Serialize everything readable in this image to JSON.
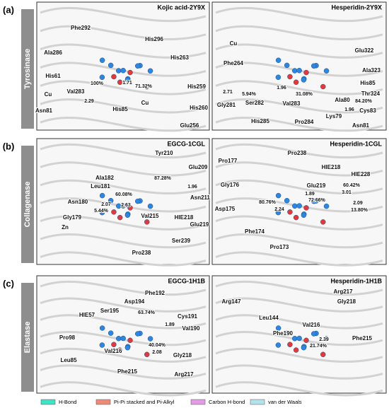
{
  "panels": [
    {
      "label": "(a)",
      "side_label": "Tyrosinase",
      "images": [
        {
          "title": "Kojic acid-2Y9X",
          "labels": [
            "Phe292",
            "His296",
            "Ala286",
            "His263",
            "His259",
            "His61",
            "Cu",
            "Val283",
            "100%",
            "2.29",
            "1.71",
            "71.32%",
            "His260",
            "Asn81",
            "His85",
            "Cu",
            "Glu256"
          ]
        },
        {
          "title": "Hesperidin-2Y9X",
          "labels": [
            "Cu",
            "Glu322",
            "Phe264",
            "Ala323",
            "2.71",
            "5.94%",
            "1.96",
            "31.08%",
            "His85",
            "Thr324",
            "Gly281",
            "Ser282",
            "Val283",
            "Ala80",
            "84.20%",
            "1.96",
            "Cys83",
            "Lys79",
            "His285",
            "Pro284",
            "Asn81"
          ]
        }
      ]
    },
    {
      "label": "(b)",
      "side_label": "Collagenase",
      "images": [
        {
          "title": "EGCG-1CGL",
          "labels": [
            "Tyr210",
            "Glu209",
            "Ala182",
            "87.28%",
            "Leu181",
            "1.96",
            "Asn211",
            "60.08%",
            "Asn180",
            "2.07",
            "2.63",
            "5.44%",
            "Val215",
            "HIE218",
            "Glu219",
            "Gly179",
            "Zn",
            "Ser239",
            "Pro238"
          ]
        },
        {
          "title": "Hesperidin-1CGL",
          "labels": [
            "Pro238",
            "Pro177",
            "HIE218",
            "HIE228",
            "Gly176",
            "Glu219",
            "1.89",
            "60.42%",
            "3.01",
            "72.66%",
            "80.76%",
            "2.09",
            "13.80%",
            "Asp175",
            "2.24",
            "Phe174",
            "Pro173"
          ]
        }
      ]
    },
    {
      "label": "(c)",
      "side_label": "Elastase",
      "images": [
        {
          "title": "EGCG-1H1B",
          "labels": [
            "Phe192",
            "Asp194",
            "63.74%",
            "Ser195",
            "HIE57",
            "Cys191",
            "1.89",
            "Val190",
            "Pro98",
            "40.04%",
            "Val216",
            "2.08",
            "Gly218",
            "Leu85",
            "Phe215",
            "Arg217"
          ]
        },
        {
          "title": "Hesperidin-1H1B",
          "labels": [
            "Arg217",
            "Arg147",
            "Gly218",
            "Leu144",
            "Val216",
            "Phe190",
            "2.39",
            "21.74%",
            "Phe215"
          ]
        }
      ]
    }
  ],
  "legend": [
    {
      "name": "H-Bond",
      "color": "#3fe3c6"
    },
    {
      "name": "Pi-Pi stacked and Pi-Alkyl",
      "color": "#f08a78"
    },
    {
      "name": "Carbon H-bond",
      "color": "#e39be8"
    },
    {
      "name": "van der Waals",
      "color": "#b4e2ec"
    }
  ]
}
